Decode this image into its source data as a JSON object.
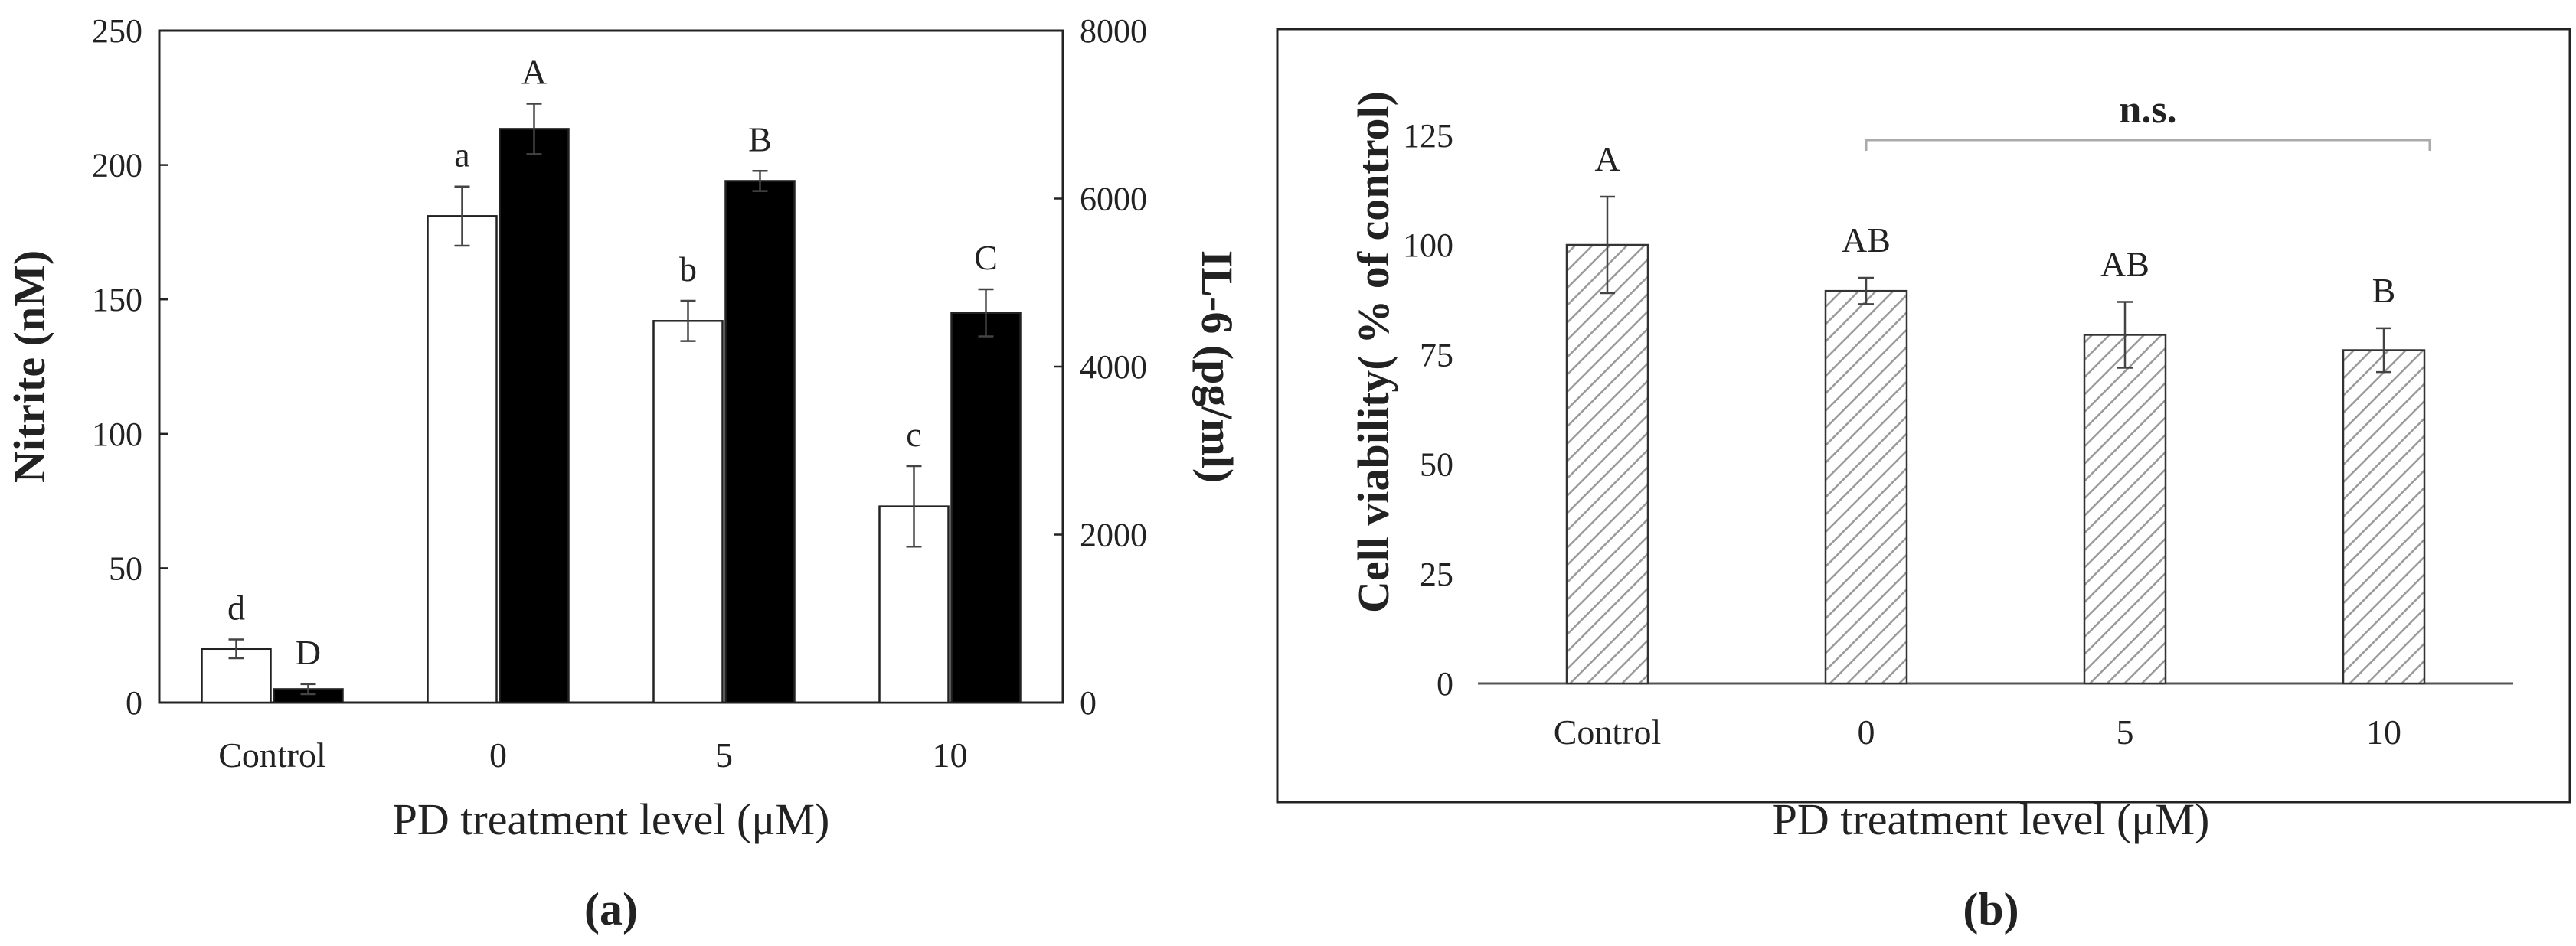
{
  "chart_data": [
    {
      "id": "a",
      "type": "bar",
      "panel_label": "(a)",
      "xlabel": "PD treatment level (μM)",
      "ylabel": "Nitrite (nM)",
      "ylabel_right": "IL-6 (pg/ml)",
      "categories": [
        "Control",
        "0",
        "5",
        "10"
      ],
      "ylim": [
        0,
        250
      ],
      "yticks": [
        0,
        50,
        100,
        150,
        200,
        250
      ],
      "ylim_right": [
        0,
        8000
      ],
      "yticks_right": [
        0,
        2000,
        4000,
        6000,
        8000
      ],
      "series": [
        {
          "name": "Nitrite",
          "axis": "left",
          "color": "#ffffff",
          "values": [
            20,
            181,
            142,
            73
          ],
          "errors": [
            3.5,
            11,
            7.5,
            15
          ],
          "labels": [
            "d",
            "a",
            "b",
            "c"
          ]
        },
        {
          "name": "IL-6",
          "axis": "right",
          "color": "#000000",
          "values": [
            160,
            6830,
            6210,
            4640
          ],
          "errors": [
            60,
            300,
            120,
            280
          ],
          "labels": [
            "D",
            "A",
            "B",
            "C"
          ]
        }
      ]
    },
    {
      "id": "b",
      "type": "bar",
      "panel_label": "(b)",
      "xlabel": "PD treatment level (μM)",
      "ylabel": "Cell viability( % of control)",
      "categories": [
        "Control",
        "0",
        "5",
        "10"
      ],
      "ylim": [
        0,
        137
      ],
      "yticks": [
        0,
        25,
        50,
        75,
        100,
        125
      ],
      "series": [
        {
          "name": "Cell viability",
          "pattern": "hatched",
          "values": [
            100,
            89.5,
            79.5,
            76
          ],
          "errors": [
            11,
            3,
            7.5,
            5
          ],
          "labels": [
            "A",
            "AB",
            "AB",
            "B"
          ]
        }
      ],
      "annotation": "n.s."
    }
  ]
}
